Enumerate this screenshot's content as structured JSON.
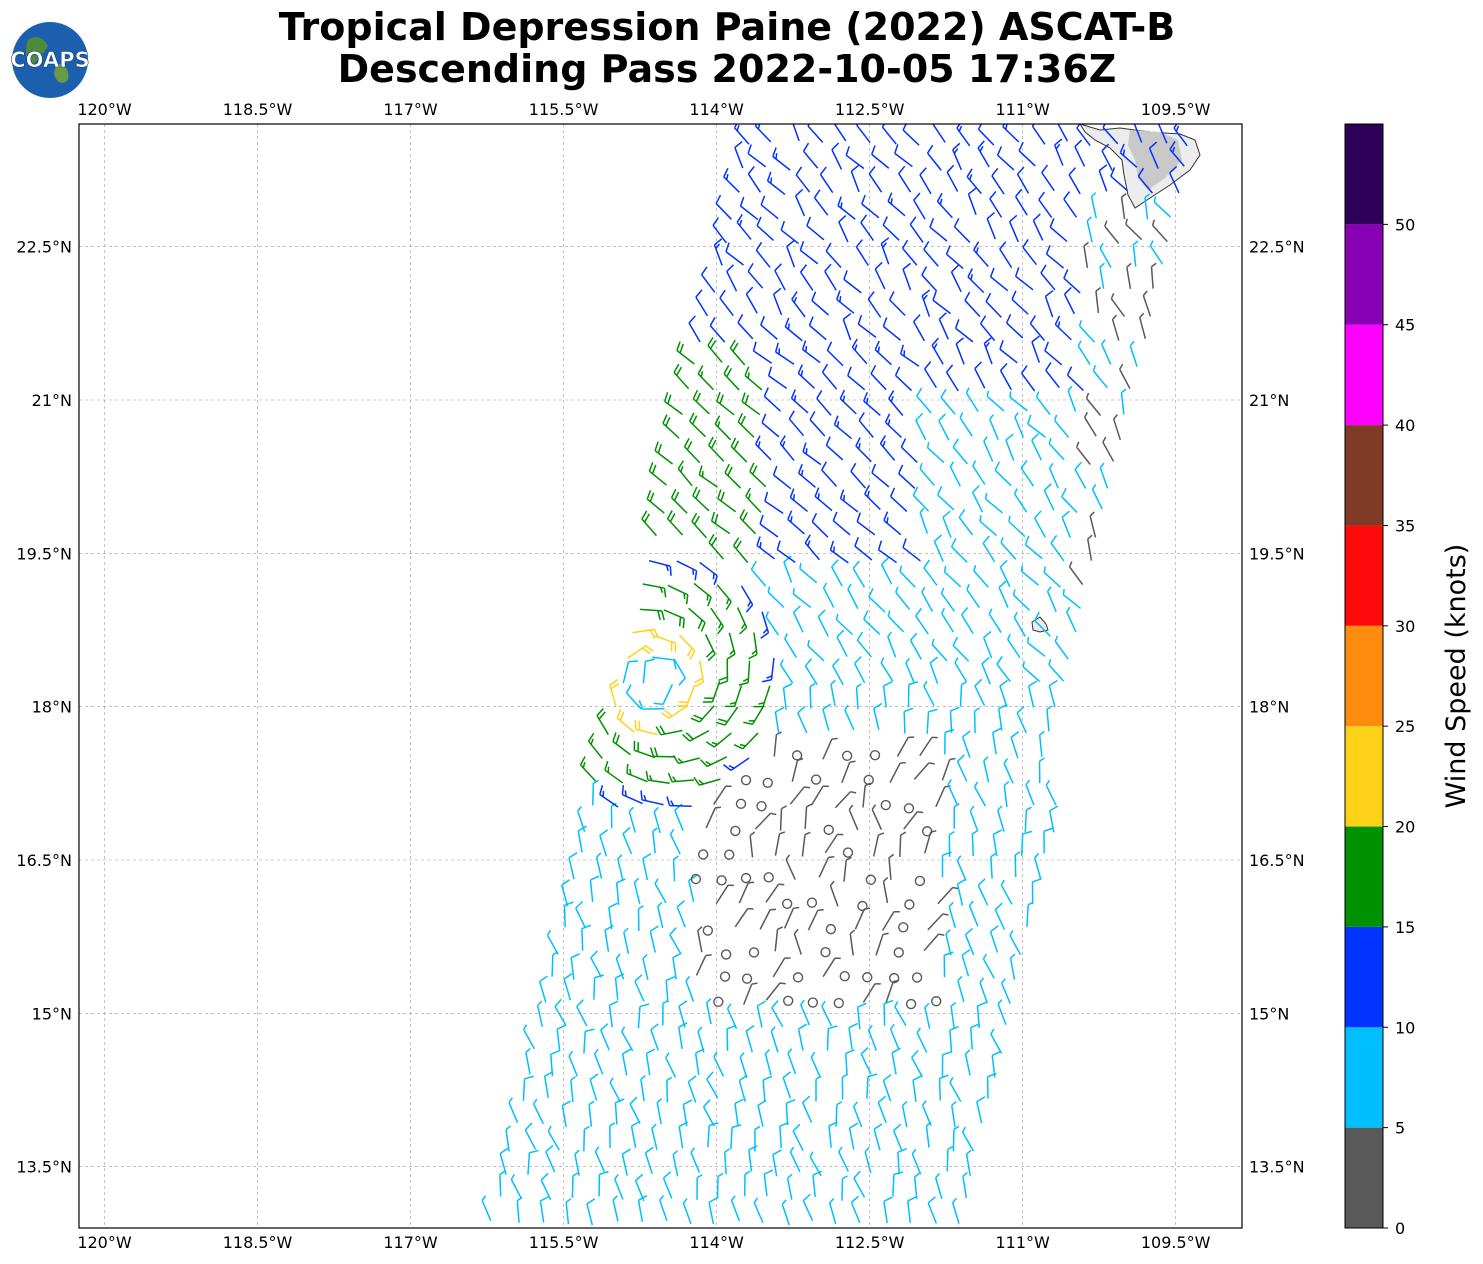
{
  "title": {
    "line1": "Tropical Depression Paine (2022) ASCAT-B",
    "line2": "Descending Pass 2022-10-05 17:36Z"
  },
  "logo": {
    "text": "COAPS"
  },
  "map": {
    "lon_range": [
      -120.25,
      -108.85
    ],
    "lat_range": [
      12.9,
      23.7
    ],
    "lon_ticks": [
      {
        "v": -120,
        "label": "120°W"
      },
      {
        "v": -118.5,
        "label": "118.5°W"
      },
      {
        "v": -117,
        "label": "117°W"
      },
      {
        "v": -115.5,
        "label": "115.5°W"
      },
      {
        "v": -114,
        "label": "114°W"
      },
      {
        "v": -112.5,
        "label": "112.5°W"
      },
      {
        "v": -111,
        "label": "111°W"
      },
      {
        "v": -109.5,
        "label": "109.5°W"
      }
    ],
    "lat_ticks": [
      {
        "v": 22.5,
        "label": "22.5°N"
      },
      {
        "v": 21,
        "label": "21°N"
      },
      {
        "v": 19.5,
        "label": "19.5°N"
      },
      {
        "v": 18,
        "label": "18°N"
      },
      {
        "v": 16.5,
        "label": "16.5°N"
      },
      {
        "v": 15,
        "label": "15°N"
      },
      {
        "v": 13.5,
        "label": "13.5°N"
      }
    ],
    "storm_center": {
      "lon": -114.6,
      "lat": 18.25
    },
    "swath": "descending pass, east edge near 109.3°W to 111.5°W"
  },
  "colorbar": {
    "label": "Wind Speed (knots)",
    "bins": [
      {
        "from": 0,
        "to": 5,
        "color": "#595959"
      },
      {
        "from": 5,
        "to": 10,
        "color": "#00bfff"
      },
      {
        "from": 10,
        "to": 15,
        "color": "#0033ff"
      },
      {
        "from": 15,
        "to": 20,
        "color": "#009100"
      },
      {
        "from": 20,
        "to": 25,
        "color": "#ffd21a"
      },
      {
        "from": 25,
        "to": 30,
        "color": "#ff8c0f"
      },
      {
        "from": 30,
        "to": 35,
        "color": "#ff0a0a"
      },
      {
        "from": 35,
        "to": 40,
        "color": "#7f3b26"
      },
      {
        "from": 40,
        "to": 45,
        "color": "#ff00ff"
      },
      {
        "from": 45,
        "to": 50,
        "color": "#8800b3"
      },
      {
        "from": 50,
        "to": 55,
        "color": "#2e0059"
      }
    ],
    "ticks": [
      "0",
      "5",
      "10",
      "15",
      "20",
      "25",
      "30",
      "35",
      "40",
      "45",
      "50"
    ]
  }
}
